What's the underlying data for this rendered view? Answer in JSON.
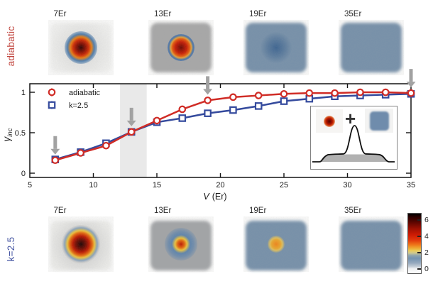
{
  "rows": {
    "top": {
      "label": "adiabatic",
      "color": "#c1453e"
    },
    "bottom": {
      "label": "k=2.5",
      "color": "#4656a3"
    }
  },
  "top_images": [
    {
      "label": "7Er"
    },
    {
      "label": "13Er"
    },
    {
      "label": "19Er"
    },
    {
      "label": "35Er"
    }
  ],
  "bottom_images": [
    {
      "label": "7Er"
    },
    {
      "label": "13Er"
    },
    {
      "label": "19Er"
    },
    {
      "label": "35Er"
    }
  ],
  "chart_data": {
    "type": "line",
    "title": "",
    "xlabel": "V (Er)",
    "xlabel_var": "V",
    "xlabel_unit": "(Er)",
    "ylabel": "γinc",
    "ylabel_main": "γ",
    "ylabel_sub": "inc",
    "xlim": [
      5,
      35
    ],
    "ylim": [
      -0.05,
      1.1
    ],
    "x_ticks": [
      5,
      10,
      15,
      20,
      25,
      30,
      35
    ],
    "y_ticks": [
      "0",
      "0.5",
      "1"
    ],
    "y_tick_values": [
      0,
      0.5,
      1
    ],
    "grid": false,
    "legend_position": "top-left",
    "legend": [
      "adiabatic",
      "k=2.5"
    ],
    "x": [
      7,
      9,
      11,
      13,
      15,
      17,
      19,
      21,
      23,
      25,
      27,
      29,
      31,
      33,
      35
    ],
    "series": [
      {
        "name": "k=2.5",
        "marker": "square",
        "color": "#344a9d",
        "values": [
          0.17,
          0.26,
          0.37,
          0.51,
          0.63,
          0.68,
          0.74,
          0.78,
          0.83,
          0.89,
          0.92,
          0.95,
          0.96,
          0.97,
          0.98
        ]
      },
      {
        "name": "adiabatic",
        "marker": "circle",
        "color": "#d02c26",
        "values": [
          0.16,
          0.25,
          0.34,
          0.51,
          0.65,
          0.79,
          0.9,
          0.94,
          0.96,
          0.98,
          0.99,
          0.99,
          1.0,
          1.0,
          0.99
        ]
      }
    ],
    "annotations": {
      "shaded_band_x": [
        12.1,
        14.2
      ],
      "arrows": [
        {
          "x": 7,
          "y": 0.16
        },
        {
          "x": 13,
          "y": 0.51
        },
        {
          "x": 19,
          "y": 0.9
        },
        {
          "x": 35,
          "y": 0.99
        }
      ],
      "arrow_color": "#a2a2a2",
      "band_color": "#e9e9e9"
    }
  },
  "inset": {
    "plus": "+"
  },
  "colorbar": {
    "tick_labels": [
      "6",
      "4",
      "2",
      "0"
    ]
  }
}
